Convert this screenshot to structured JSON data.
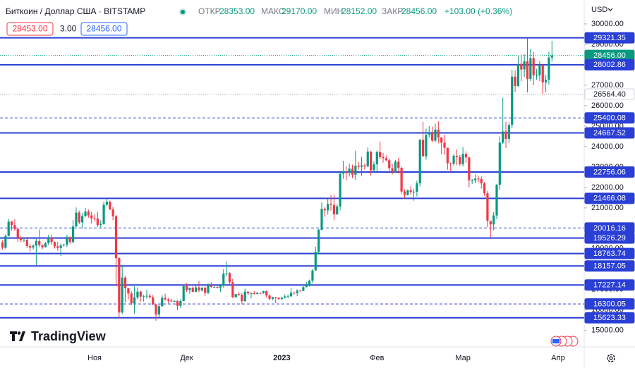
{
  "header": {
    "symbol": "Биткоин / Доллар США · BITSTAMP",
    "open_label": "ОТКР",
    "open": "28353.00",
    "high_label": "МАКС",
    "high": "29170.00",
    "low_label": "МИН",
    "low": "28152.00",
    "close_label": "ЗАКР",
    "close": "28456.00",
    "change": "+103.00 (+0.36%)",
    "bid": "28453.00",
    "spread": "3.00",
    "ask": "28456.00",
    "currency": "USD",
    "brand": "TradingView"
  },
  "chart_data": {
    "type": "candlestick",
    "up_color": "#089981",
    "down_color": "#f23645",
    "ylim": [
      14200,
      31170
    ],
    "yticks": [
      {
        "value": 15000,
        "label": "15000.00"
      },
      {
        "value": 16000,
        "label": "16000.00"
      },
      {
        "value": 17000,
        "label": "17000.00"
      },
      {
        "value": 18000,
        "label": "18000.00"
      },
      {
        "value": 19000,
        "label": "19000.00"
      },
      {
        "value": 20000,
        "label": "20000.00"
      },
      {
        "value": 21000,
        "label": "21000.00"
      },
      {
        "value": 22000,
        "label": "22000.00"
      },
      {
        "value": 23000,
        "label": "23000.00"
      },
      {
        "value": 24000,
        "label": "24000.00"
      },
      {
        "value": 25000,
        "label": "25000.00"
      },
      {
        "value": 26000,
        "label": "26000.00"
      },
      {
        "value": 27000,
        "label": "27000.00"
      },
      {
        "value": 28000,
        "label": "28000.00"
      },
      {
        "value": 29000,
        "label": "29000.00"
      },
      {
        "value": 30000,
        "label": "30000.00"
      }
    ],
    "levels": [
      {
        "value": 29321.35,
        "label": "29321.35",
        "style": "solid",
        "color": "#2a3fd6"
      },
      {
        "value": 28456,
        "label": "28456.00",
        "style": "current",
        "color": "#089981"
      },
      {
        "value": 28002.86,
        "label": "28002.86",
        "style": "solid",
        "color": "#2a3fd6"
      },
      {
        "value": 26564.4,
        "label": "26564.40",
        "style": "dotted",
        "color": "#9598a1"
      },
      {
        "value": 25400.08,
        "label": "25400.08",
        "style": "dashed",
        "color": "#2a3fd6"
      },
      {
        "value": 24667.52,
        "label": "24667.52",
        "style": "solid",
        "color": "#2a3fd6"
      },
      {
        "value": 22756.06,
        "label": "22756.06",
        "style": "solid",
        "color": "#2a3fd6"
      },
      {
        "value": 21466.08,
        "label": "21466.08",
        "style": "solid",
        "color": "#2a3fd6"
      },
      {
        "value": 20016.16,
        "label": "20016.16",
        "style": "dashed",
        "color": "#2a3fd6"
      },
      {
        "value": 19526.29,
        "label": "19526.29",
        "style": "solid",
        "color": "#2a3fd6"
      },
      {
        "value": 18763.74,
        "label": "18763.74",
        "style": "solid",
        "color": "#2a3fd6"
      },
      {
        "value": 18157.05,
        "label": "18157.05",
        "style": "solid",
        "color": "#2a3fd6"
      },
      {
        "value": 17227.14,
        "label": "17227.14",
        "style": "solid",
        "color": "#2a3fd6"
      },
      {
        "value": 16300.05,
        "label": "16300.05",
        "style": "dashed",
        "color": "#2a3fd6"
      },
      {
        "value": 15623.33,
        "label": "15623.33",
        "style": "solid",
        "color": "#2a3fd6"
      }
    ],
    "categories": [
      null,
      null,
      null,
      null,
      null,
      null,
      null,
      null,
      null,
      null,
      null,
      null,
      null,
      null,
      null,
      null,
      null,
      null,
      null,
      null,
      null,
      null,
      null,
      null,
      null,
      null,
      null,
      null,
      null,
      null,
      "Ноя",
      null,
      null,
      null,
      null,
      null,
      null,
      null,
      null,
      null,
      null,
      null,
      null,
      null,
      null,
      null,
      null,
      null,
      null,
      null,
      null,
      null,
      null,
      null,
      null,
      null,
      null,
      null,
      null,
      null,
      "Дек",
      null,
      null,
      null,
      null,
      null,
      null,
      null,
      null,
      null,
      null,
      null,
      null,
      null,
      null,
      null,
      null,
      null,
      null,
      null,
      null,
      null,
      null,
      null,
      null,
      null,
      null,
      null,
      null,
      null,
      null,
      "2023",
      null,
      null,
      null,
      null,
      null,
      null,
      null,
      null,
      null,
      null,
      null,
      null,
      null,
      null,
      null,
      null,
      null,
      null,
      null,
      null,
      null,
      null,
      null,
      null,
      null,
      null,
      null,
      null,
      null,
      null,
      "Фев",
      null,
      null,
      null,
      null,
      null,
      null,
      null,
      null,
      null,
      null,
      null,
      null,
      null,
      null,
      null,
      null,
      null,
      null,
      null,
      null,
      null,
      null,
      null,
      null,
      null,
      null,
      null,
      "Мар",
      null,
      null,
      null,
      null,
      null,
      null,
      null,
      null,
      null,
      null,
      null,
      null,
      null,
      null,
      null,
      null,
      null,
      null,
      null,
      null,
      null,
      null,
      null,
      null,
      null,
      null,
      null,
      null,
      null,
      null,
      "Апр"
    ],
    "ohlc": [
      [
        19310,
        19400,
        18960,
        19050
      ],
      [
        19050,
        19700,
        19000,
        19620
      ],
      [
        19620,
        20460,
        19600,
        20330
      ],
      [
        20330,
        20360,
        19900,
        20160
      ],
      [
        20160,
        20440,
        19870,
        19960
      ],
      [
        19960,
        20050,
        19330,
        19530
      ],
      [
        19530,
        19610,
        19320,
        19420
      ],
      [
        19420,
        19520,
        19320,
        19440
      ],
      [
        19440,
        19520,
        19040,
        19130
      ],
      [
        19130,
        19250,
        18860,
        19060
      ],
      [
        19060,
        19220,
        18970,
        19150
      ],
      [
        19150,
        19500,
        18190,
        19380
      ],
      [
        19380,
        19940,
        19080,
        19180
      ],
      [
        19180,
        19220,
        18980,
        19070
      ],
      [
        19070,
        19330,
        19070,
        19270
      ],
      [
        19270,
        19680,
        19180,
        19550
      ],
      [
        19550,
        19690,
        19200,
        19330
      ],
      [
        19330,
        19360,
        19010,
        19120
      ],
      [
        19120,
        19340,
        18900,
        19040
      ],
      [
        19040,
        19260,
        18650,
        19160
      ],
      [
        19160,
        19250,
        19110,
        19200
      ],
      [
        19200,
        19690,
        19080,
        19570
      ],
      [
        19570,
        19600,
        19240,
        19330
      ],
      [
        19330,
        20410,
        19260,
        20090
      ],
      [
        20090,
        21020,
        20060,
        20770
      ],
      [
        20770,
        20870,
        20200,
        20290
      ],
      [
        20290,
        20750,
        20000,
        20600
      ],
      [
        20600,
        20990,
        20560,
        20820
      ],
      [
        20820,
        20920,
        20520,
        20630
      ],
      [
        20630,
        20800,
        20240,
        20490
      ],
      [
        20490,
        20680,
        20340,
        20480
      ],
      [
        20480,
        20800,
        20060,
        20160
      ],
      [
        20160,
        20390,
        20040,
        20210
      ],
      [
        20210,
        21290,
        20180,
        21150
      ],
      [
        21150,
        21470,
        21080,
        21300
      ],
      [
        21300,
        21360,
        20900,
        20920
      ],
      [
        20920,
        21050,
        20400,
        20590
      ],
      [
        20590,
        20660,
        17170,
        18540
      ],
      [
        18540,
        18590,
        15590,
        15880
      ],
      [
        15880,
        18150,
        15800,
        17590
      ],
      [
        17590,
        17660,
        16380,
        17070
      ],
      [
        17070,
        17070,
        16530,
        16810
      ],
      [
        16810,
        16920,
        16230,
        16330
      ],
      [
        16330,
        17160,
        15820,
        16620
      ],
      [
        16620,
        17110,
        16540,
        16900
      ],
      [
        16900,
        16960,
        16400,
        16660
      ],
      [
        16660,
        16740,
        16420,
        16690
      ],
      [
        16690,
        16990,
        16550,
        16700
      ],
      [
        16700,
        16800,
        16560,
        16630
      ],
      [
        16630,
        16740,
        16250,
        16270
      ],
      [
        16270,
        16300,
        15480,
        15780
      ],
      [
        15780,
        16270,
        15630,
        16190
      ],
      [
        16190,
        16720,
        16160,
        16600
      ],
      [
        16600,
        16800,
        16460,
        16520
      ],
      [
        16520,
        16590,
        16330,
        16460
      ],
      [
        16460,
        16560,
        16410,
        16440
      ],
      [
        16440,
        16480,
        16380,
        16440
      ],
      [
        16440,
        16480,
        16000,
        16210
      ],
      [
        16210,
        16530,
        16110,
        16440
      ],
      [
        16440,
        17240,
        16430,
        17170
      ],
      [
        17170,
        17320,
        16870,
        16980
      ],
      [
        16980,
        17100,
        16790,
        17090
      ],
      [
        17090,
        17150,
        16880,
        16890
      ],
      [
        16890,
        17200,
        16880,
        17110
      ],
      [
        17110,
        17420,
        16870,
        16960
      ],
      [
        16960,
        17110,
        16910,
        17090
      ],
      [
        17090,
        17140,
        16690,
        16840
      ],
      [
        16840,
        17300,
        16780,
        17230
      ],
      [
        17230,
        17360,
        17090,
        17130
      ],
      [
        17130,
        17220,
        17090,
        17130
      ],
      [
        17130,
        17260,
        17070,
        17090
      ],
      [
        17090,
        17240,
        16880,
        17210
      ],
      [
        17210,
        18000,
        17090,
        17780
      ],
      [
        17780,
        18380,
        17660,
        17810
      ],
      [
        17810,
        17850,
        17280,
        17360
      ],
      [
        17360,
        17530,
        16590,
        16630
      ],
      [
        16630,
        16800,
        16590,
        16780
      ],
      [
        16780,
        16870,
        16700,
        16740
      ],
      [
        16740,
        16820,
        16280,
        16440
      ],
      [
        16440,
        17050,
        16400,
        16900
      ],
      [
        16900,
        16910,
        16730,
        16820
      ],
      [
        16820,
        16870,
        16570,
        16830
      ],
      [
        16830,
        16940,
        16760,
        16780
      ],
      [
        16780,
        16870,
        16780,
        16840
      ],
      [
        16840,
        16860,
        16780,
        16830
      ],
      [
        16830,
        16950,
        16800,
        16920
      ],
      [
        16920,
        16960,
        16600,
        16710
      ],
      [
        16710,
        16780,
        16470,
        16550
      ],
      [
        16550,
        16650,
        16490,
        16630
      ],
      [
        16630,
        16650,
        16340,
        16600
      ],
      [
        16600,
        16630,
        16490,
        16540
      ],
      [
        16540,
        16630,
        16500,
        16610
      ],
      [
        16610,
        16770,
        16550,
        16670
      ],
      [
        16670,
        16760,
        16600,
        16670
      ],
      [
        16670,
        17080,
        16660,
        16850
      ],
      [
        16850,
        16880,
        16750,
        16830
      ],
      [
        16830,
        17020,
        16680,
        16950
      ],
      [
        16950,
        16980,
        16910,
        16940
      ],
      [
        16940,
        17170,
        16920,
        17120
      ],
      [
        17120,
        17390,
        17110,
        17180
      ],
      [
        17180,
        17490,
        17150,
        17440
      ],
      [
        17440,
        18000,
        17320,
        17940
      ],
      [
        17940,
        19100,
        17930,
        18850
      ],
      [
        18850,
        19970,
        18720,
        19930
      ],
      [
        19930,
        21260,
        19890,
        20950
      ],
      [
        20950,
        21040,
        20560,
        20880
      ],
      [
        20880,
        21460,
        20670,
        21190
      ],
      [
        21190,
        21620,
        20870,
        21140
      ],
      [
        21140,
        21650,
        20410,
        20680
      ],
      [
        20680,
        21180,
        20660,
        21070
      ],
      [
        21070,
        22750,
        20880,
        22670
      ],
      [
        22670,
        23300,
        22420,
        22780
      ],
      [
        22780,
        23040,
        22340,
        22710
      ],
      [
        22710,
        23160,
        22530,
        22920
      ],
      [
        22920,
        23110,
        22460,
        22620
      ],
      [
        22620,
        23800,
        22370,
        23060
      ],
      [
        23060,
        23240,
        22860,
        23010
      ],
      [
        23010,
        23500,
        22570,
        23080
      ],
      [
        23080,
        23170,
        22870,
        23030
      ],
      [
        23030,
        23950,
        22990,
        23750
      ],
      [
        23750,
        23790,
        22560,
        22840
      ],
      [
        22840,
        23270,
        22720,
        23130
      ],
      [
        23130,
        23810,
        22780,
        23730
      ],
      [
        23730,
        24250,
        23380,
        23490
      ],
      [
        23490,
        23690,
        23210,
        23430
      ],
      [
        23430,
        23560,
        23270,
        23330
      ],
      [
        23330,
        23420,
        22760,
        22940
      ],
      [
        22940,
        23140,
        22640,
        22760
      ],
      [
        22760,
        23350,
        22720,
        23260
      ],
      [
        23260,
        23450,
        22690,
        22960
      ],
      [
        22960,
        23010,
        21690,
        21800
      ],
      [
        21800,
        21910,
        21460,
        21630
      ],
      [
        21630,
        21900,
        21600,
        21860
      ],
      [
        21860,
        22060,
        21660,
        21780
      ],
      [
        21780,
        21920,
        21350,
        21790
      ],
      [
        21790,
        22320,
        21560,
        22200
      ],
      [
        22200,
        24370,
        22050,
        24330
      ],
      [
        24330,
        25210,
        23510,
        23520
      ],
      [
        23520,
        24880,
        23360,
        24570
      ],
      [
        24570,
        25000,
        24430,
        24630
      ],
      [
        24630,
        24980,
        24210,
        24290
      ],
      [
        24290,
        25120,
        24210,
        24830
      ],
      [
        24830,
        25230,
        24160,
        24440
      ],
      [
        24440,
        24470,
        23620,
        24190
      ],
      [
        24190,
        24580,
        23600,
        23940
      ],
      [
        23940,
        23950,
        22870,
        23190
      ],
      [
        23190,
        23220,
        22760,
        23160
      ],
      [
        23160,
        23640,
        23060,
        23550
      ],
      [
        23550,
        23850,
        23090,
        23490
      ],
      [
        23490,
        23600,
        23050,
        23140
      ],
      [
        23140,
        23970,
        23030,
        23640
      ],
      [
        23640,
        23770,
        23210,
        23470
      ],
      [
        23470,
        23470,
        22000,
        22350
      ],
      [
        22350,
        22410,
        22170,
        22350
      ],
      [
        22350,
        22630,
        22200,
        22430
      ],
      [
        22430,
        22580,
        22240,
        22410
      ],
      [
        22410,
        22540,
        21940,
        22200
      ],
      [
        22200,
        22260,
        21590,
        21710
      ],
      [
        21710,
        21820,
        20060,
        20360
      ],
      [
        20360,
        20370,
        19570,
        20190
      ],
      [
        20190,
        20800,
        19900,
        20630
      ],
      [
        20630,
        22180,
        20450,
        22130
      ],
      [
        22130,
        24500,
        21890,
        24190
      ],
      [
        24190,
        26390,
        24130,
        24740
      ],
      [
        24740,
        25220,
        23930,
        24380
      ],
      [
        24380,
        25190,
        24160,
        25060
      ],
      [
        25060,
        27760,
        24900,
        27420
      ],
      [
        27420,
        27730,
        26660,
        26960
      ],
      [
        26960,
        28440,
        26900,
        28040
      ],
      [
        28040,
        28500,
        27190,
        27770
      ],
      [
        27770,
        28500,
        27400,
        28170
      ],
      [
        28170,
        29300,
        26650,
        27310
      ],
      [
        27310,
        28780,
        27200,
        28330
      ],
      [
        28330,
        28620,
        27000,
        27490
      ],
      [
        27490,
        27800,
        27270,
        27490
      ],
      [
        27490,
        28170,
        27200,
        27990
      ],
      [
        27990,
        28040,
        26560,
        27140
      ],
      [
        27140,
        27500,
        26650,
        27270
      ],
      [
        27270,
        28640,
        27030,
        28350
      ],
      [
        28353,
        29170,
        28152,
        28456
      ],
      null,
      null
    ]
  }
}
